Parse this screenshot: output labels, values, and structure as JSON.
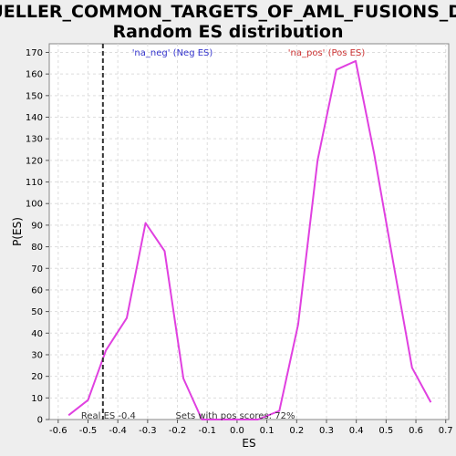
{
  "chart_data": {
    "type": "line",
    "title_line1": "MUELLER_COMMON_TARGETS_OF_AML_FUSIONS_DN:",
    "title_line2": "Random ES distribution",
    "xlabel": "ES",
    "ylabel": "P(ES)",
    "xlim": [
      -0.63,
      0.71
    ],
    "ylim": [
      0,
      174
    ],
    "xticks": [
      -0.6,
      -0.5,
      -0.4,
      -0.3,
      -0.2,
      -0.1,
      0.0,
      0.1,
      0.2,
      0.3,
      0.4,
      0.5,
      0.6,
      0.7
    ],
    "xtick_labels": [
      "-0.6",
      "-0.5",
      "-0.4",
      "-0.3",
      "-0.2",
      "-0.1",
      "0.0",
      "0.1",
      "0.2",
      "0.3",
      "0.4",
      "0.5",
      "0.6",
      "0.7"
    ],
    "yticks": [
      0,
      10,
      20,
      30,
      40,
      50,
      60,
      70,
      80,
      90,
      100,
      110,
      120,
      130,
      140,
      150,
      160,
      170
    ],
    "grid": true,
    "series": [
      {
        "color": "#e040e0",
        "points": [
          [
            -0.565,
            2
          ],
          [
            -0.5,
            9
          ],
          [
            -0.44,
            32
          ],
          [
            -0.37,
            47
          ],
          [
            -0.307,
            91
          ],
          [
            -0.243,
            78
          ],
          [
            -0.18,
            19
          ],
          [
            -0.118,
            0
          ],
          [
            -0.055,
            0
          ],
          [
            0.008,
            0
          ],
          [
            0.07,
            0
          ],
          [
            0.142,
            4
          ],
          [
            0.205,
            44
          ],
          [
            0.27,
            120
          ],
          [
            0.333,
            162
          ],
          [
            0.398,
            166
          ],
          [
            0.46,
            123
          ],
          [
            0.525,
            72
          ],
          [
            0.587,
            24
          ],
          [
            0.65,
            8
          ]
        ]
      }
    ],
    "real_es": {
      "value": -0.45,
      "label": "Real ES -0.4"
    },
    "annotations": {
      "na_neg": {
        "text": "'na_neg' (Neg ES)",
        "color": "#3333cc"
      },
      "na_pos": {
        "text": "'na_pos' (Pos ES)",
        "color": "#cc3333"
      },
      "pos_scores": {
        "text": "Sets with pos scores: 72%"
      }
    }
  }
}
